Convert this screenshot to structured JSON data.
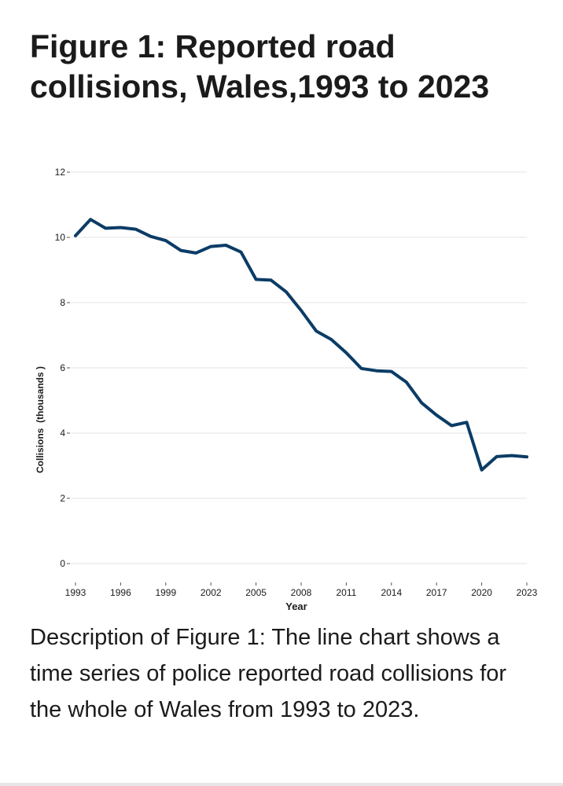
{
  "page": {
    "title": "Figure 1: Reported road collisions, Wales,1993 to 2023",
    "description": "Description of Figure 1: The line chart shows a time series of police reported road collisions for the whole of Wales from 1993 to 2023."
  },
  "colors": {
    "line": "#0b3c66",
    "grid": "#e3e3e3",
    "text": "#1b1b1b"
  },
  "chart_data": {
    "type": "line",
    "title": "Figure 1: Reported road collisions, Wales,1993 to 2023",
    "xlabel": "Year",
    "ylabel": "Collisions  (thousands )",
    "xlim": [
      1993,
      2023
    ],
    "ylim": [
      0,
      12
    ],
    "yticks": [
      0,
      2,
      4,
      6,
      8,
      10,
      12
    ],
    "ytick_labels": [
      "0",
      "2",
      "4",
      "6",
      "8",
      "10",
      "12"
    ],
    "xticks": [
      1993,
      1996,
      1999,
      2002,
      2005,
      2008,
      2011,
      2014,
      2017,
      2020,
      2023
    ],
    "xtick_labels": [
      "1993",
      "1996",
      "1999",
      "2002",
      "2005",
      "2008",
      "2011",
      "2014",
      "2017",
      "2020",
      "2023"
    ],
    "grid": true,
    "legend": "none",
    "series": [
      {
        "name": "Reported road collisions",
        "x": [
          1993,
          1994,
          1995,
          1996,
          1997,
          1998,
          1999,
          2000,
          2001,
          2002,
          2003,
          2004,
          2005,
          2006,
          2007,
          2008,
          2009,
          2010,
          2011,
          2012,
          2013,
          2014,
          2015,
          2016,
          2017,
          2018,
          2019,
          2020,
          2021,
          2022,
          2023
        ],
        "values": [
          10.05,
          10.55,
          10.28,
          10.3,
          10.25,
          10.03,
          9.9,
          9.6,
          9.52,
          9.72,
          9.76,
          9.55,
          8.71,
          8.69,
          8.33,
          7.76,
          7.13,
          6.87,
          6.46,
          5.98,
          5.91,
          5.89,
          5.56,
          4.93,
          4.55,
          4.23,
          4.33,
          2.87,
          3.28,
          3.31,
          3.27
        ]
      }
    ]
  }
}
